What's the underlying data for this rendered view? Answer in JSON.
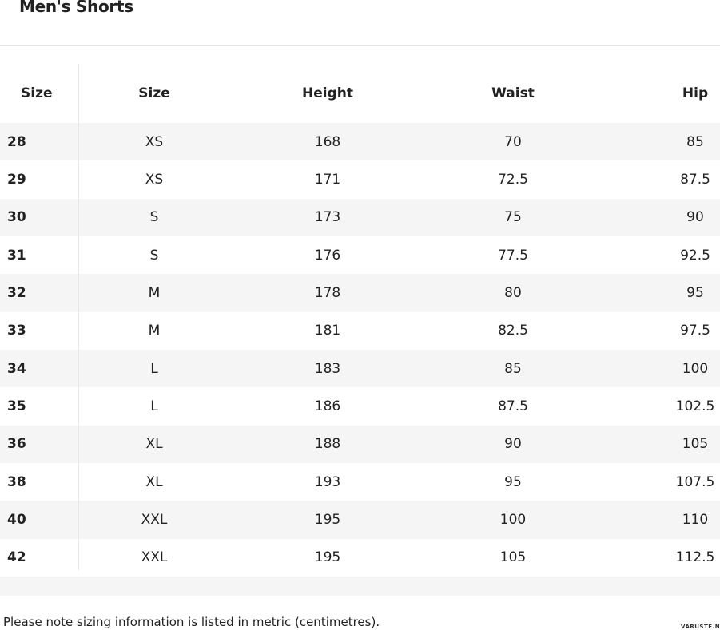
{
  "title": "Men's Shorts",
  "table": {
    "header": [
      "Size",
      "Size",
      "Height",
      "Waist",
      "Hip"
    ],
    "rows": [
      [
        28,
        "XS",
        168,
        70,
        85
      ],
      [
        29,
        "XS",
        171,
        72.5,
        87.5
      ],
      [
        30,
        "S",
        173,
        75,
        90
      ],
      [
        31,
        "S",
        176,
        77.5,
        92.5
      ],
      [
        32,
        "M",
        178,
        80,
        95
      ],
      [
        33,
        "M",
        181,
        82.5,
        97.5
      ],
      [
        34,
        "L",
        183,
        85,
        100
      ],
      [
        35,
        "L",
        186,
        87.5,
        102.5
      ],
      [
        36,
        "XL",
        188,
        90,
        105
      ],
      [
        38,
        "XL",
        193,
        95,
        107.5
      ],
      [
        40,
        "XXL",
        195,
        100,
        110
      ],
      [
        42,
        "XXL",
        195,
        105,
        112.5
      ]
    ]
  },
  "footer": {
    "note": "Please note sizing information is listed in metric (centimetres).",
    "watermark": "VARUSTE.NET"
  }
}
